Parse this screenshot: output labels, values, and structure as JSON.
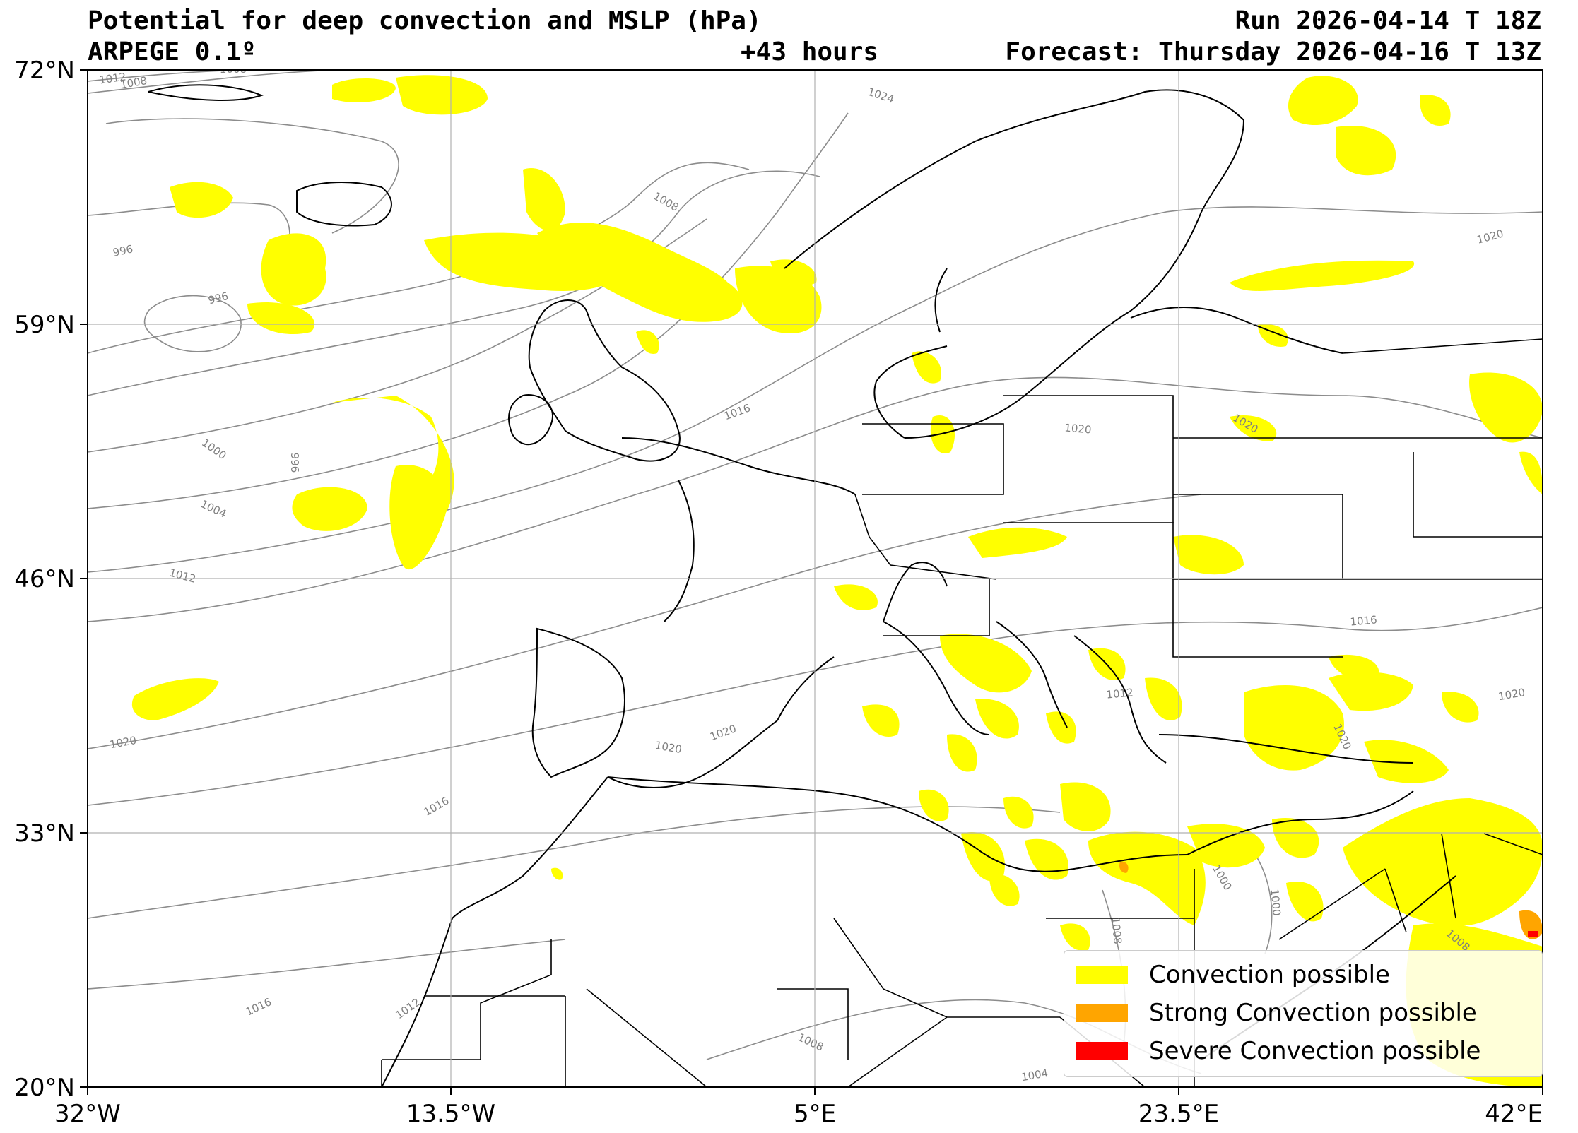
{
  "header": {
    "title": "Potential for deep convection and MSLP (hPa)",
    "model": "ARPEGE 0.1º",
    "lead": "+43 hours",
    "run": "Run 2026-04-14 T 18Z",
    "forecast": "Forecast: Thursday 2026-04-16 T 13Z"
  },
  "axes": {
    "lon_ticks": [
      "32°W",
      "13.5°W",
      "5°E",
      "23.5°E",
      "42°E"
    ],
    "lat_ticks": [
      "72°N",
      "59°N",
      "46°N",
      "33°N",
      "20°N"
    ],
    "lon_range": [
      -32,
      42
    ],
    "lat_range": [
      20,
      72
    ],
    "grid": true
  },
  "isobar_labels": [
    "1012",
    "1008",
    "1008",
    "996",
    "996",
    "1008",
    "1024",
    "1000",
    "996",
    "1004",
    "1012",
    "1016",
    "1020",
    "1016",
    "1020",
    "1020",
    "1020",
    "1016",
    "1012",
    "1020",
    "1020",
    "1020",
    "1020",
    "1016",
    "1012",
    "1008",
    "1004",
    "1000",
    "1000",
    "1008",
    "1008"
  ],
  "legend": {
    "items": [
      {
        "label": "Convection possible",
        "color": "#ffff00"
      },
      {
        "label": "Strong Convection possible",
        "color": "#ffa500"
      },
      {
        "label": "Severe Convection possible",
        "color": "#ff0000"
      }
    ]
  },
  "colors": {
    "convection": "#ffff00",
    "strong": "#ffa500",
    "severe": "#ff0000",
    "isobar": "#8c8c8c",
    "coast": "#000000",
    "grid": "#b0b0b0"
  }
}
